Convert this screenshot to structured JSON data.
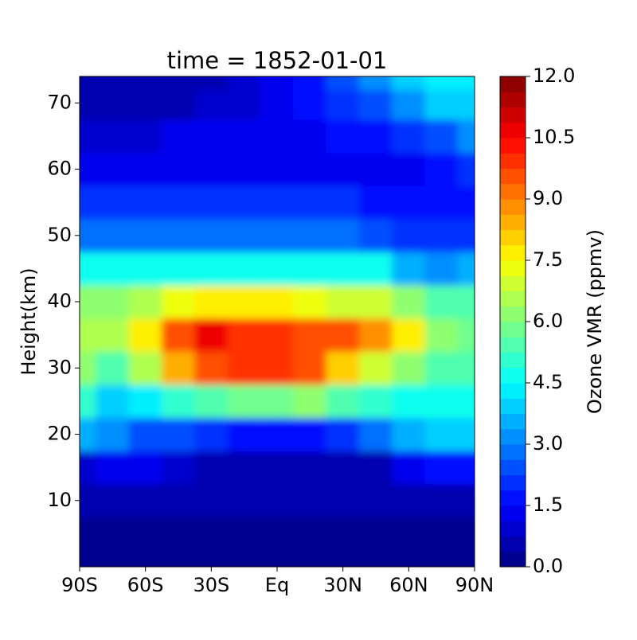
{
  "chart_data": {
    "type": "contour",
    "title": "time = 1852-01-01",
    "y_label": "Height(km)",
    "colorbar_label": "Ozone VMR (ppmv)",
    "x": [
      -90,
      -75,
      -60,
      -45,
      -30,
      -15,
      0,
      15,
      30,
      45,
      60,
      75,
      90
    ],
    "y": [
      0,
      5,
      10,
      15,
      20,
      25,
      30,
      35,
      40,
      45,
      50,
      55,
      60,
      65,
      70,
      74
    ],
    "z": [
      [
        0.2,
        0.2,
        0.2,
        0.2,
        0.2,
        0.2,
        0.2,
        0.2,
        0.2,
        0.2,
        0.2,
        0.2,
        0.2
      ],
      [
        0.3,
        0.3,
        0.3,
        0.3,
        0.3,
        0.3,
        0.3,
        0.3,
        0.3,
        0.3,
        0.3,
        0.3,
        0.3
      ],
      [
        0.5,
        0.5,
        0.4,
        0.4,
        0.4,
        0.4,
        0.4,
        0.4,
        0.4,
        0.4,
        0.5,
        0.5,
        0.5
      ],
      [
        1.0,
        1.3,
        1.2,
        0.8,
        0.5,
        0.4,
        0.4,
        0.4,
        0.5,
        0.6,
        1.3,
        1.6,
        1.8
      ],
      [
        3.5,
        3.0,
        2.6,
        2.3,
        2.0,
        1.6,
        1.5,
        1.6,
        2.2,
        2.8,
        3.4,
        3.8,
        4.0
      ],
      [
        5.2,
        4.0,
        4.3,
        5.0,
        5.5,
        5.8,
        5.8,
        6.0,
        5.5,
        5.0,
        4.6,
        4.5,
        4.5
      ],
      [
        6.3,
        5.5,
        6.5,
        8.3,
        9.5,
        9.8,
        10.0,
        9.6,
        8.0,
        7.0,
        6.0,
        5.5,
        5.3
      ],
      [
        6.5,
        6.5,
        7.5,
        9.5,
        10.8,
        10.0,
        9.8,
        9.6,
        9.4,
        8.8,
        7.5,
        6.3,
        5.8
      ],
      [
        6.0,
        6.2,
        6.5,
        7.2,
        7.6,
        7.6,
        7.5,
        7.3,
        7.0,
        6.8,
        6.3,
        5.5,
        5.5
      ],
      [
        4.8,
        4.7,
        4.5,
        4.6,
        4.8,
        4.8,
        4.8,
        4.8,
        4.7,
        4.5,
        3.5,
        3.0,
        3.5
      ],
      [
        2.8,
        2.8,
        2.8,
        2.8,
        2.8,
        2.8,
        2.8,
        2.8,
        2.8,
        2.6,
        2.2,
        2.0,
        2.2
      ],
      [
        2.0,
        2.0,
        2.0,
        2.0,
        2.0,
        2.0,
        2.0,
        2.0,
        2.0,
        1.8,
        1.6,
        1.6,
        1.6
      ],
      [
        1.4,
        1.4,
        1.4,
        1.4,
        1.4,
        1.4,
        1.4,
        1.4,
        1.4,
        1.4,
        1.4,
        1.6,
        2.0
      ],
      [
        0.9,
        0.8,
        1.0,
        1.2,
        1.3,
        1.4,
        1.4,
        1.4,
        1.5,
        1.8,
        2.2,
        2.6,
        3.0
      ],
      [
        0.5,
        0.5,
        0.6,
        0.7,
        0.9,
        1.1,
        1.3,
        1.6,
        2.0,
        2.6,
        3.3,
        3.8,
        4.0
      ],
      [
        0.5,
        0.5,
        0.5,
        0.5,
        0.6,
        0.9,
        1.4,
        1.8,
        2.4,
        3.0,
        3.8,
        4.2,
        4.3
      ]
    ],
    "xlim": [
      -90,
      90
    ],
    "ylim": [
      0,
      74
    ],
    "xticks": [
      {
        "value": -90,
        "label": "90S"
      },
      {
        "value": -60,
        "label": "60S"
      },
      {
        "value": -30,
        "label": "30S"
      },
      {
        "value": 0,
        "label": "Eq"
      },
      {
        "value": 30,
        "label": "30N"
      },
      {
        "value": 60,
        "label": "60N"
      },
      {
        "value": 90,
        "label": "90N"
      }
    ],
    "yticks": [
      10,
      20,
      30,
      40,
      50,
      60,
      70
    ],
    "clim": [
      0,
      12
    ],
    "cticks": [
      {
        "value": 0,
        "label": "0.0"
      },
      {
        "value": 1.5,
        "label": "1.5"
      },
      {
        "value": 3,
        "label": "3.0"
      },
      {
        "value": 4.5,
        "label": "4.5"
      },
      {
        "value": 6,
        "label": "6.0"
      },
      {
        "value": 7.5,
        "label": "7.5"
      },
      {
        "value": 9,
        "label": "9.0"
      },
      {
        "value": 10.5,
        "label": "10.5"
      },
      {
        "value": 12,
        "label": "12.0"
      }
    ],
    "levels": 32,
    "colormap": "jet"
  }
}
